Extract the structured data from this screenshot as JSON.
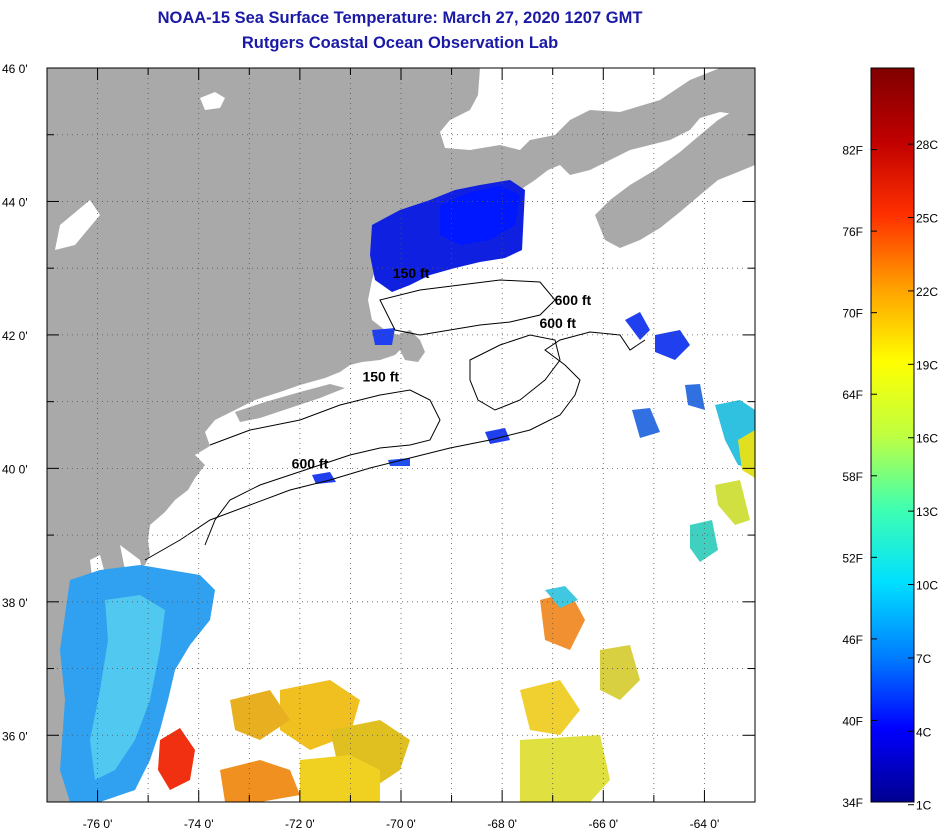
{
  "title": "NOAA-15 Sea Surface Temperature:  March 27, 2020 1207 GMT",
  "subtitle": "Rutgers Coastal Ocean Observation Lab",
  "map": {
    "lat_range": [
      35,
      46
    ],
    "lon_range": [
      -77,
      -63
    ],
    "lat_ticks": [
      {
        "value": 46,
        "label": "46 0'"
      },
      {
        "value": 44,
        "label": "44 0'"
      },
      {
        "value": 42,
        "label": "42 0'"
      },
      {
        "value": 40,
        "label": "40 0'"
      },
      {
        "value": 38,
        "label": "38 0'"
      },
      {
        "value": 36,
        "label": "36 0'"
      }
    ],
    "lon_ticks": [
      {
        "value": -76,
        "label": "-76 0'"
      },
      {
        "value": -74,
        "label": "-74 0'"
      },
      {
        "value": -72,
        "label": "-72 0'"
      },
      {
        "value": -70,
        "label": "-70 0'"
      },
      {
        "value": -68,
        "label": "-68 0'"
      },
      {
        "value": -66,
        "label": "-66 0'"
      },
      {
        "value": -64,
        "label": "-64 0'"
      }
    ],
    "grid": "dotted",
    "colors": {
      "land": "#a9a9a9",
      "ocean_no_data": "#ffffff",
      "frame": "#000000"
    },
    "contour_labels": [
      {
        "text": "600 ft",
        "lon": -66.6,
        "lat": 42.45
      },
      {
        "text": "600 ft",
        "lon": -66.9,
        "lat": 42.1
      },
      {
        "text": "150 ft",
        "lon": -70.4,
        "lat": 41.3
      },
      {
        "text": "600 ft",
        "lon": -71.8,
        "lat": 40.0
      },
      {
        "text": "150 ft",
        "lon": -69.8,
        "lat": 42.85
      }
    ]
  },
  "colorbar": {
    "range_f": [
      34,
      88
    ],
    "fahrenheit": [
      {
        "value": 82,
        "label": "82F"
      },
      {
        "value": 76,
        "label": "76F"
      },
      {
        "value": 70,
        "label": "70F"
      },
      {
        "value": 64,
        "label": "64F"
      },
      {
        "value": 58,
        "label": "58F"
      },
      {
        "value": 52,
        "label": "52F"
      },
      {
        "value": 46,
        "label": "46F"
      },
      {
        "value": 40,
        "label": "40F"
      },
      {
        "value": 34,
        "label": "34F"
      }
    ],
    "celsius": [
      {
        "value": 28,
        "label": "28C"
      },
      {
        "value": 25,
        "label": "25C"
      },
      {
        "value": 22,
        "label": "22C"
      },
      {
        "value": 19,
        "label": "19C"
      },
      {
        "value": 16,
        "label": "16C"
      },
      {
        "value": 13,
        "label": "13C"
      },
      {
        "value": 10,
        "label": "10C"
      },
      {
        "value": 7,
        "label": "7C"
      },
      {
        "value": 4,
        "label": "4C"
      },
      {
        "value": 1,
        "label": "1C"
      }
    ],
    "gradient": [
      "#00008f",
      "#0000ff",
      "#0080ff",
      "#00e0ff",
      "#40ffb0",
      "#c0ff40",
      "#ffff00",
      "#ffa000",
      "#ff3000",
      "#c00000",
      "#800000"
    ]
  }
}
